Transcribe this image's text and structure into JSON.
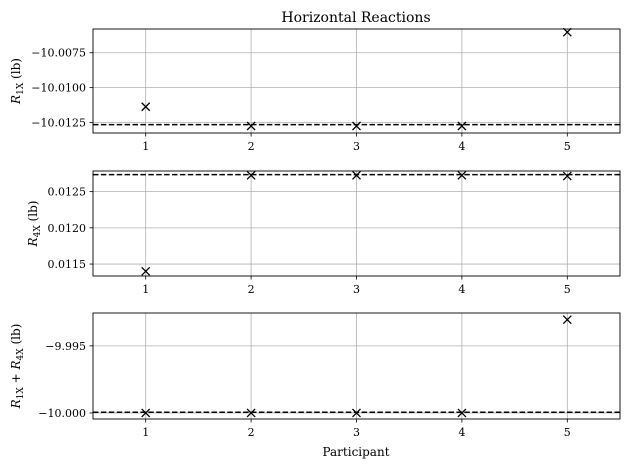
{
  "title": "Horizontal Reactions",
  "xlabel": "Participant",
  "chart_data": [
    {
      "type": "scatter",
      "title": "Horizontal Reactions",
      "ylabel": "R_{1X} (lb)",
      "ylabel_parts": {
        "base": "R",
        "sub": "1X",
        "unit": " (lb)"
      },
      "x": [
        1,
        2,
        3,
        4,
        5
      ],
      "y": [
        -10.01137,
        -10.01275,
        -10.01275,
        -10.01275,
        -10.00603
      ],
      "reference_line": -10.01265,
      "xlim": [
        0.5,
        5.5
      ],
      "ylim": [
        -10.01325,
        -10.0058
      ],
      "xticks": [
        1,
        2,
        3,
        4,
        5
      ],
      "yticks": [
        -10.0075,
        -10.01,
        -10.0125
      ],
      "ytick_labels": [
        "−10.0075",
        "−10.0100",
        "−10.0125"
      ],
      "grid": true,
      "marker": "x",
      "color": "#000000"
    },
    {
      "type": "scatter",
      "title": "",
      "ylabel": "R_{4X} (lb)",
      "ylabel_parts": {
        "base": "R",
        "sub": "4X",
        "unit": " (lb)"
      },
      "x": [
        1,
        2,
        3,
        4,
        5
      ],
      "y": [
        0.0114,
        0.012725,
        0.012725,
        0.012725,
        0.012715
      ],
      "reference_line": 0.012735,
      "xlim": [
        0.5,
        5.5
      ],
      "ylim": [
        0.011335,
        0.012785
      ],
      "xticks": [
        1,
        2,
        3,
        4,
        5
      ],
      "yticks": [
        0.0125,
        0.012,
        0.0115
      ],
      "ytick_labels": [
        "0.0125",
        "0.0120",
        "0.0115"
      ],
      "grid": true,
      "marker": "x",
      "color": "#000000"
    },
    {
      "type": "scatter",
      "title": "",
      "ylabel": "R_{1X} + R_{4X} (lb)",
      "ylabel_parts": {
        "base": "R",
        "sub": "1X",
        "plus": " + ",
        "base2": "R",
        "sub2": "4X",
        "unit": " (lb)"
      },
      "x": [
        1,
        2,
        3,
        4,
        5
      ],
      "y": [
        -10.0,
        -10.0,
        -10.0,
        -10.0,
        -9.99305
      ],
      "reference_line": -9.99995,
      "xlim": [
        0.5,
        5.5
      ],
      "ylim": [
        -10.00045,
        -9.99255
      ],
      "xticks": [
        1,
        2,
        3,
        4,
        5
      ],
      "yticks": [
        -9.995,
        -10.0
      ],
      "ytick_labels": [
        "−9.995",
        "−10.000"
      ],
      "grid": true,
      "marker": "x",
      "color": "#000000"
    }
  ]
}
